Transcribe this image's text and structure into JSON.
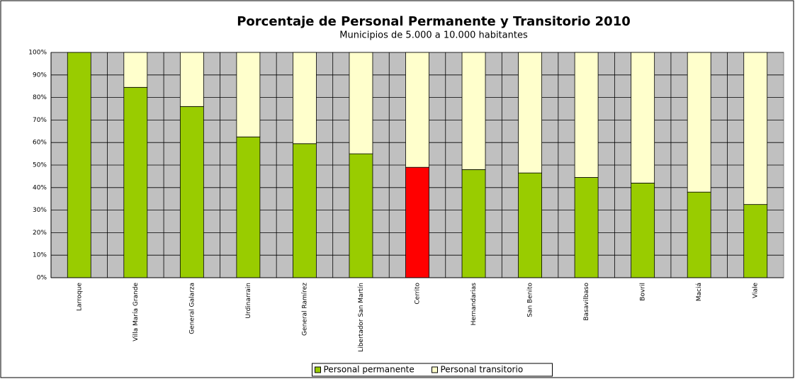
{
  "chart_data": {
    "type": "stacked_bar",
    "title": "Porcentaje de Personal Permanente y Transitorio 2010",
    "subtitle": "Municipios de 5.000 a 10.000 habitantes",
    "categories": [
      "Larroque",
      "Villa María Grande",
      "General Galarza",
      "Urdinarrain",
      "General Ramírez",
      "Libertador San Martín",
      "Cerrito",
      "Hernandarias",
      "San Benito",
      "Basavilbaso",
      "Bovril",
      "Maciá",
      "Viale"
    ],
    "series": [
      {
        "name": "Personal permanente",
        "color": "#99cc00",
        "colors": [
          "#99cc00",
          "#99cc00",
          "#99cc00",
          "#99cc00",
          "#99cc00",
          "#99cc00",
          "#ff0000",
          "#99cc00",
          "#99cc00",
          "#99cc00",
          "#99cc00",
          "#99cc00",
          "#99cc00"
        ],
        "values": [
          100,
          84.5,
          76,
          62.5,
          59.5,
          55,
          49,
          48,
          46.5,
          44.5,
          42,
          38,
          32.5
        ]
      },
      {
        "name": "Personal transitorio",
        "color": "#ffffcc",
        "values": [
          0,
          15.5,
          24,
          37.5,
          40.5,
          45,
          51,
          52,
          53.5,
          55.5,
          58,
          62,
          67.5
        ]
      }
    ],
    "ylim": [
      0,
      100
    ],
    "yticks": [
      {
        "value": 0,
        "label": "0%"
      },
      {
        "value": 10,
        "label": "10%"
      },
      {
        "value": 20,
        "label": "20%"
      },
      {
        "value": 30,
        "label": "30%"
      },
      {
        "value": 40,
        "label": "40%"
      },
      {
        "value": 50,
        "label": "50%"
      },
      {
        "value": 60,
        "label": "60%"
      },
      {
        "value": 70,
        "label": "70%"
      },
      {
        "value": 80,
        "label": "80%"
      },
      {
        "value": 90,
        "label": "90%"
      },
      {
        "value": 100,
        "label": "100%"
      }
    ],
    "grid": true,
    "legend": "bottom"
  }
}
